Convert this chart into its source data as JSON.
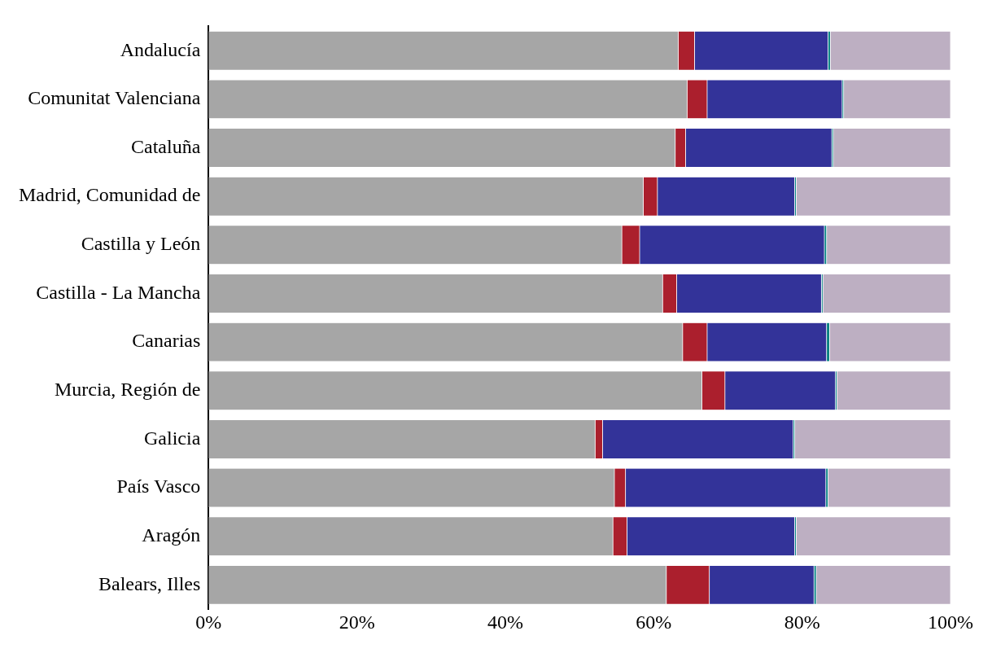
{
  "chart_data": {
    "type": "bar",
    "orientation": "horizontal",
    "stacked": true,
    "grid": false,
    "legend": false,
    "categories": [
      "Andalucía",
      "Comunitat Valenciana",
      "Cataluña",
      "Madrid, Comunidad de",
      "Castilla y León",
      "Castilla - La Mancha",
      "Canarias",
      "Murcia, Región de",
      "Galicia",
      "País Vasco",
      "Aragón",
      "Balears, Illes"
    ],
    "xlim": [
      0,
      100
    ],
    "xticks": [
      {
        "value": 0,
        "label": "0%"
      },
      {
        "value": 20,
        "label": "20%"
      },
      {
        "value": 40,
        "label": "40%"
      },
      {
        "value": 60,
        "label": "60%"
      },
      {
        "value": 80,
        "label": "80%"
      },
      {
        "value": 100,
        "label": "100%"
      }
    ],
    "series": [
      {
        "color": "#a6a6a6",
        "values": [
          63.3,
          64.5,
          62.9,
          58.6,
          55.7,
          61.2,
          63.9,
          66.5,
          52.1,
          54.7,
          54.5,
          61.7
        ]
      },
      {
        "color": "#ab1f2d",
        "values": [
          2.2,
          2.7,
          1.4,
          1.9,
          2.4,
          1.9,
          3.3,
          3.1,
          1.0,
          1.5,
          1.9,
          5.8
        ]
      },
      {
        "color": "#333399",
        "values": [
          18.0,
          18.2,
          19.7,
          18.5,
          24.9,
          19.5,
          16.1,
          14.9,
          25.7,
          27.0,
          22.6,
          14.1
        ]
      },
      {
        "color": "#008080",
        "values": [
          0.3,
          0.2,
          0.2,
          0.2,
          0.3,
          0.2,
          0.4,
          0.2,
          0.2,
          0.3,
          0.2,
          0.3
        ]
      },
      {
        "color": "#bdafc2",
        "values": [
          16.2,
          14.4,
          15.8,
          20.8,
          16.7,
          17.2,
          16.3,
          15.3,
          21.0,
          16.5,
          20.8,
          18.1
        ]
      }
    ]
  }
}
